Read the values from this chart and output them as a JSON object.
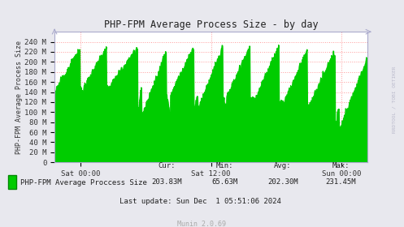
{
  "title": "PHP-FPM Average Process Size - by day",
  "ylabel": "PHP-FPM Average Process Size",
  "right_label": "RRDTOOL / TOBI OETIKER",
  "bg_color": "#e8e8ee",
  "plot_bg_color": "#ffffff",
  "line_color": "#00cc00",
  "fill_color": "#00cc00",
  "ytick_labels": [
    "0",
    "20 M",
    "40 M",
    "60 M",
    "80 M",
    "100 M",
    "120 M",
    "140 M",
    "160 M",
    "180 M",
    "200 M",
    "220 M",
    "240 M"
  ],
  "ytick_values": [
    0,
    20,
    40,
    60,
    80,
    100,
    120,
    140,
    160,
    180,
    200,
    220,
    240
  ],
  "ylim": [
    0,
    260
  ],
  "xtick_labels": [
    "Sat 00:00",
    "Sat 12:00",
    "Sun 00:00"
  ],
  "xtick_positions": [
    0.083,
    0.5,
    0.917
  ],
  "legend_label": "PHP-FPM Average Proccess Size",
  "cur": "203.83M",
  "min": "65.63M",
  "avg": "202.30M",
  "max": "231.45M",
  "last_update": "Last update: Sun Dec  1 05:51:06 2024",
  "munin_version": "Munin 2.0.69",
  "title_color": "#333333",
  "axis_color": "#aaaacc"
}
